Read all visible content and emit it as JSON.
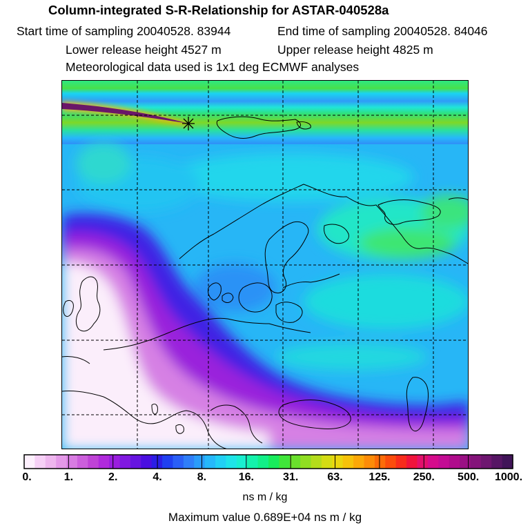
{
  "header": {
    "title": "Column-integrated S-R-Relationship for ASTAR-040528a",
    "start_time": "Start time of sampling 20040528. 83944",
    "end_time": "End time of sampling 20040528. 84046",
    "lower_release": "Lower release height 4527 m",
    "upper_release": "Upper release height 4825 m",
    "met_data": "Meteorological data used is 1x1 deg ECMWF analyses"
  },
  "colorbar": {
    "colors": [
      "#fdf0fd",
      "#f6d0f6",
      "#eeb6ee",
      "#e499e8",
      "#d87ce2",
      "#cc5fdc",
      "#bf43d6",
      "#b02adc",
      "#9a1edf",
      "#8019e0",
      "#6614e0",
      "#4a0fe0",
      "#2b1ee5",
      "#2040f0",
      "#2a5ff6",
      "#2f7ef9",
      "#2a9cfa",
      "#26b8fa",
      "#22d0f4",
      "#1fe4e8",
      "#19efd0",
      "#14f2ac",
      "#12f088",
      "#18ec5c",
      "#40e63a",
      "#6ae02c",
      "#90de22",
      "#b4dc1c",
      "#d4dc14",
      "#ead60e",
      "#f6c20a",
      "#fca808",
      "#fd8c08",
      "#fd6c08",
      "#fb4c0c",
      "#f82c1c",
      "#f0143c",
      "#e4106c",
      "#d60c8c",
      "#c40c94",
      "#b00c8c",
      "#9a1084",
      "#84147a",
      "#6e1670",
      "#561664",
      "#401458"
    ],
    "tick_labels": [
      "0.",
      "1.",
      "2.",
      "4.",
      "8.",
      "16.",
      "31.",
      "63.",
      "125.",
      "250.",
      "500.",
      "1000."
    ],
    "unit": "ns m / kg"
  },
  "footer": {
    "max_value": "Maximum value  0.689E+04 ns m / kg"
  }
}
